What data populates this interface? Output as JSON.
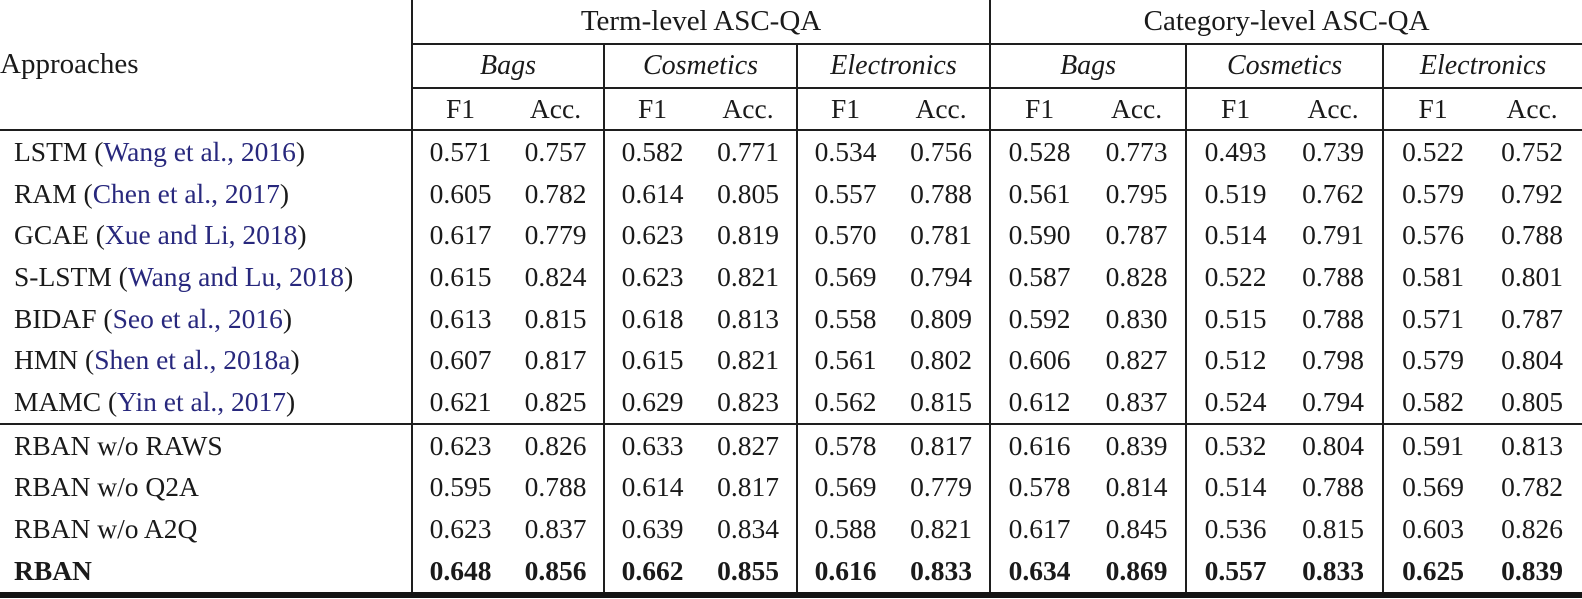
{
  "table": {
    "colors": {
      "text": "#1a1a1a",
      "citation_link": "#28287d",
      "rule": "#1e1e1e"
    },
    "approaches_header": "Approaches",
    "group_headers": [
      "Term-level ASC-QA",
      "Category-level ASC-QA"
    ],
    "domain_headers": [
      "Bags",
      "Cosmetics",
      "Electronics",
      "Bags",
      "Cosmetics",
      "Electronics"
    ],
    "metric_headers": [
      "F1",
      "Acc.",
      "F1",
      "Acc.",
      "F1",
      "Acc.",
      "F1",
      "Acc.",
      "F1",
      "Acc.",
      "F1",
      "Acc."
    ],
    "rows": [
      {
        "name": "LSTM",
        "cite": "Wang et al., 2016",
        "bold": false,
        "rule_below": false,
        "values": [
          "0.571",
          "0.757",
          "0.582",
          "0.771",
          "0.534",
          "0.756",
          "0.528",
          "0.773",
          "0.493",
          "0.739",
          "0.522",
          "0.752"
        ]
      },
      {
        "name": "RAM",
        "cite": "Chen et al., 2017",
        "bold": false,
        "rule_below": false,
        "values": [
          "0.605",
          "0.782",
          "0.614",
          "0.805",
          "0.557",
          "0.788",
          "0.561",
          "0.795",
          "0.519",
          "0.762",
          "0.579",
          "0.792"
        ]
      },
      {
        "name": "GCAE",
        "cite": "Xue and Li, 2018",
        "bold": false,
        "rule_below": false,
        "values": [
          "0.617",
          "0.779",
          "0.623",
          "0.819",
          "0.570",
          "0.781",
          "0.590",
          "0.787",
          "0.514",
          "0.791",
          "0.576",
          "0.788"
        ]
      },
      {
        "name": "S-LSTM",
        "cite": "Wang and Lu, 2018",
        "bold": false,
        "rule_below": false,
        "values": [
          "0.615",
          "0.824",
          "0.623",
          "0.821",
          "0.569",
          "0.794",
          "0.587",
          "0.828",
          "0.522",
          "0.788",
          "0.581",
          "0.801"
        ]
      },
      {
        "name": "BIDAF",
        "cite": "Seo et al., 2016",
        "bold": false,
        "rule_below": false,
        "values": [
          "0.613",
          "0.815",
          "0.618",
          "0.813",
          "0.558",
          "0.809",
          "0.592",
          "0.830",
          "0.515",
          "0.788",
          "0.571",
          "0.787"
        ]
      },
      {
        "name": "HMN",
        "cite": "Shen et al., 2018a",
        "bold": false,
        "rule_below": false,
        "values": [
          "0.607",
          "0.817",
          "0.615",
          "0.821",
          "0.561",
          "0.802",
          "0.606",
          "0.827",
          "0.512",
          "0.798",
          "0.579",
          "0.804"
        ]
      },
      {
        "name": "MAMC",
        "cite": "Yin et al., 2017",
        "bold": false,
        "rule_below": true,
        "values": [
          "0.621",
          "0.825",
          "0.629",
          "0.823",
          "0.562",
          "0.815",
          "0.612",
          "0.837",
          "0.524",
          "0.794",
          "0.582",
          "0.805"
        ]
      },
      {
        "name": "RBAN w/o RAWS",
        "cite": "",
        "bold": false,
        "rule_below": false,
        "values": [
          "0.623",
          "0.826",
          "0.633",
          "0.827",
          "0.578",
          "0.817",
          "0.616",
          "0.839",
          "0.532",
          "0.804",
          "0.591",
          "0.813"
        ]
      },
      {
        "name": "RBAN w/o Q2A",
        "cite": "",
        "bold": false,
        "rule_below": false,
        "values": [
          "0.595",
          "0.788",
          "0.614",
          "0.817",
          "0.569",
          "0.779",
          "0.578",
          "0.814",
          "0.514",
          "0.788",
          "0.569",
          "0.782"
        ]
      },
      {
        "name": "RBAN w/o A2Q",
        "cite": "",
        "bold": false,
        "rule_below": false,
        "values": [
          "0.623",
          "0.837",
          "0.639",
          "0.834",
          "0.588",
          "0.821",
          "0.617",
          "0.845",
          "0.536",
          "0.815",
          "0.603",
          "0.826"
        ]
      },
      {
        "name": "RBAN",
        "cite": "",
        "bold": true,
        "rule_below": false,
        "values": [
          "0.648",
          "0.856",
          "0.662",
          "0.855",
          "0.616",
          "0.833",
          "0.634",
          "0.869",
          "0.557",
          "0.833",
          "0.625",
          "0.839"
        ]
      }
    ]
  }
}
